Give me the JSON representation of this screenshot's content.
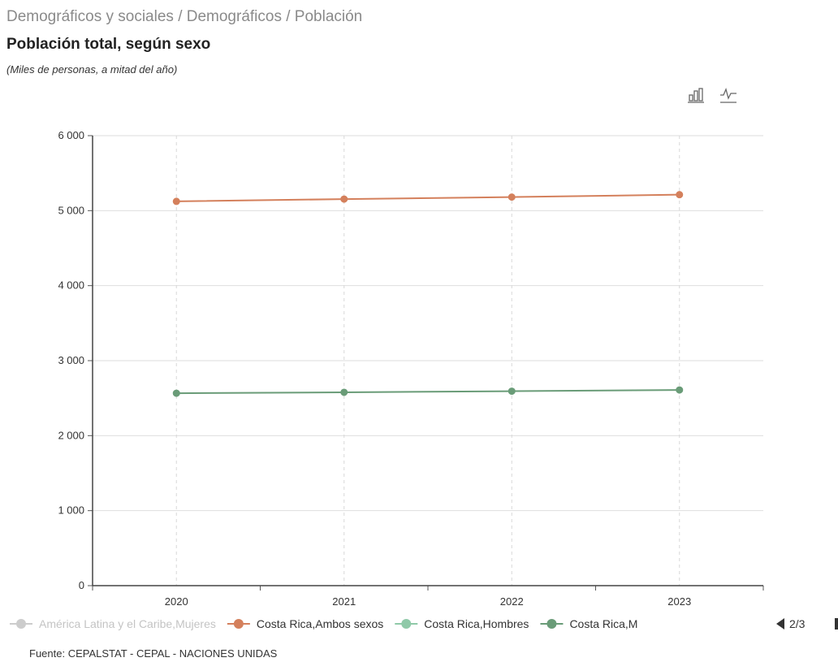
{
  "header": {
    "breadcrumb": "Demográficos y sociales / Demográficos / Población",
    "title": "Población total, según sexo",
    "subtitle": "(Miles de personas, a mitad del año)"
  },
  "toolbar": {
    "buttons": [
      {
        "icon": "bar-chart-icon"
      },
      {
        "icon": "line-chart-icon"
      }
    ]
  },
  "legend": {
    "items": [
      {
        "label": "América Latina y el Caribe,Mujeres",
        "color": "#cccccc",
        "active": false
      },
      {
        "label": "Costa Rica,Ambos sexos",
        "color": "#d4805c",
        "active": true
      },
      {
        "label": "Costa Rica,Hombres",
        "color": "#8fc9a8",
        "active": true
      },
      {
        "label": "Costa Rica,M",
        "color": "#6a9c78",
        "active": true
      }
    ],
    "page": "2/3"
  },
  "source": "Fuente: CEPALSTAT - CEPAL - NACIONES UNIDAS",
  "chart_data": {
    "type": "line",
    "categories": [
      "2020",
      "2021",
      "2022",
      "2023"
    ],
    "ylim": [
      0,
      6000
    ],
    "yticks": [
      0,
      1000,
      2000,
      3000,
      4000,
      5000,
      6000
    ],
    "ytick_labels": [
      "0",
      "1 000",
      "2 000",
      "3 000",
      "4 000",
      "5 000",
      "6 000"
    ],
    "grid": true,
    "series": [
      {
        "name": "Costa Rica,Ambos sexos",
        "color": "#d4805c",
        "values": [
          5124,
          5154,
          5181,
          5213
        ]
      },
      {
        "name": "Costa Rica,M",
        "color": "#6a9c78",
        "values": [
          2566,
          2578,
          2593,
          2609
        ]
      }
    ]
  }
}
